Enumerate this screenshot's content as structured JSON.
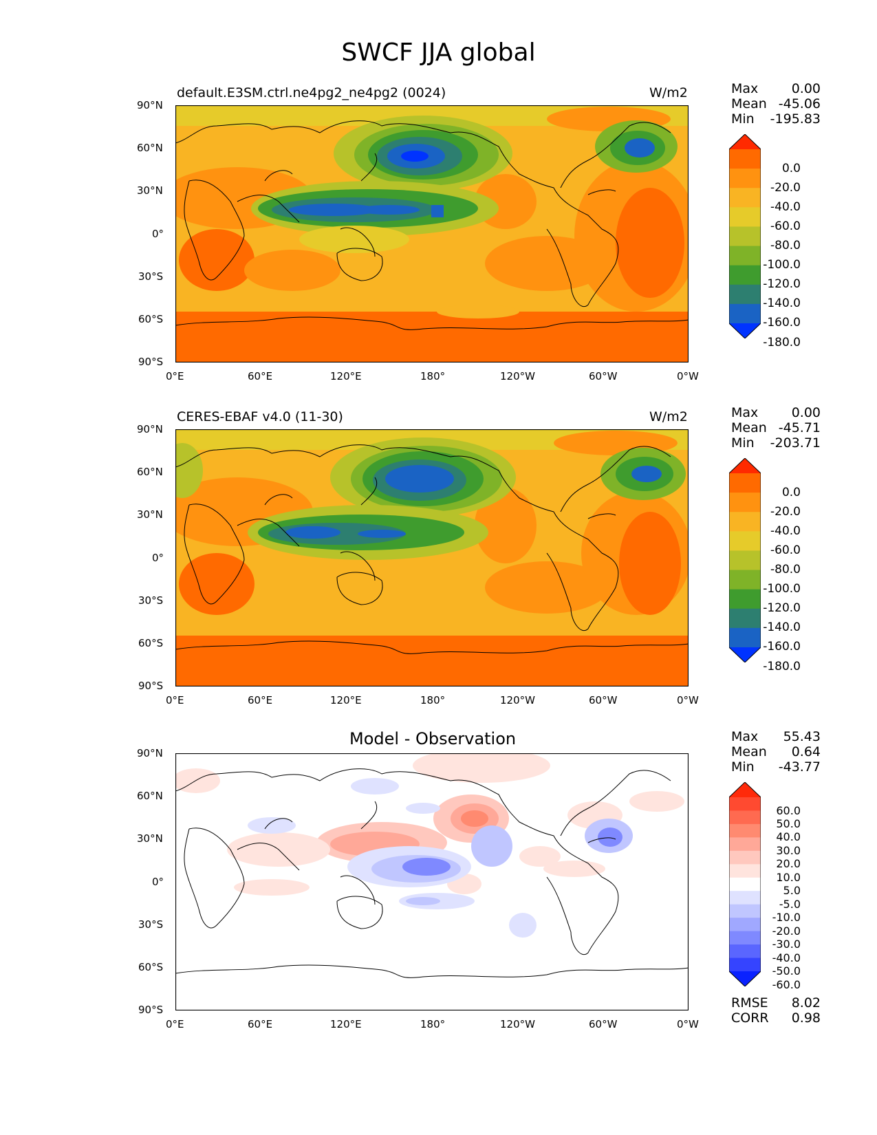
{
  "figure_title": "SWCF JJA global",
  "lat_ticks": [
    "90°N",
    "60°N",
    "30°N",
    "0°",
    "30°S",
    "60°S",
    "90°S"
  ],
  "lon_ticks": [
    "0°E",
    "60°E",
    "120°E",
    "180°",
    "120°W",
    "60°W",
    "0°W"
  ],
  "panels": [
    {
      "title": "default.E3SM.ctrl.ne4pg2_ne4pg2 (0024)",
      "units": "W/m2",
      "stats": {
        "max_label": "Max",
        "max": "0.00",
        "mean_label": "Mean",
        "mean": "-45.06",
        "min_label": "Min",
        "min": "-195.83"
      }
    },
    {
      "title": "CERES-EBAF v4.0 (11-30)",
      "units": "W/m2",
      "stats": {
        "max_label": "Max",
        "max": "0.00",
        "mean_label": "Mean",
        "mean": "-45.71",
        "min_label": "Min",
        "min": "-203.71"
      }
    },
    {
      "title": "Model - Observation",
      "units": "",
      "stats": {
        "max_label": "Max",
        "max": "55.43",
        "mean_label": "Mean",
        "mean": "0.64",
        "min_label": "Min",
        "min": "-43.77"
      },
      "metrics": {
        "rmse_label": "RMSE",
        "rmse": "8.02",
        "corr_label": "CORR",
        "corr": "0.98"
      }
    }
  ],
  "colorbar_field": {
    "labels": [
      "0.0",
      "-20.0",
      "-40.0",
      "-60.0",
      "-80.0",
      "-100.0",
      "-120.0",
      "-140.0",
      "-160.0",
      "-180.0"
    ],
    "colors": [
      "#ff2a00",
      "#ff6a00",
      "#ff9210",
      "#f9b423",
      "#e6cb2a",
      "#b7c22a",
      "#7fb328",
      "#3f9c2e",
      "#2d7f70",
      "#1a63c4",
      "#0033ff"
    ]
  },
  "colorbar_diff": {
    "labels": [
      "60.0",
      "50.0",
      "40.0",
      "30.0",
      "20.0",
      "10.0",
      "5.0",
      "-5.0",
      "-10.0",
      "-20.0",
      "-30.0",
      "-40.0",
      "-50.0",
      "-60.0"
    ],
    "colors": [
      "#ff2a0a",
      "#ff4a30",
      "#ff6a50",
      "#ff8a70",
      "#ffa898",
      "#ffc8be",
      "#ffe4de",
      "#ffffff",
      "#dfe2ff",
      "#c0c6ff",
      "#a0a8ff",
      "#7f89ff",
      "#5a66ff",
      "#3544ff",
      "#0a22ff"
    ]
  }
}
